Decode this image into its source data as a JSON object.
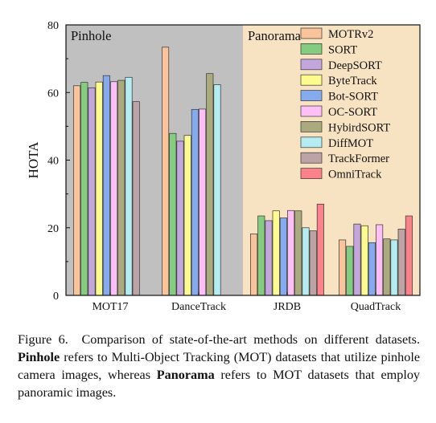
{
  "chart_data": {
    "type": "bar",
    "ylabel": "HOTA",
    "ylim": [
      0,
      80
    ],
    "yticks": [
      0,
      20,
      40,
      60,
      80
    ],
    "grid": false,
    "legend_position": "top-right",
    "categories": [
      "MOT17",
      "DanceTrack",
      "JRDB",
      "QuadTrack"
    ],
    "regions": [
      {
        "label": "Pinhole",
        "categories": [
          "MOT17",
          "DanceTrack"
        ],
        "color": "#c0c0c0"
      },
      {
        "label": "Panorama",
        "categories": [
          "JRDB",
          "QuadTrack"
        ],
        "color": "#f7e3c2"
      }
    ],
    "series": [
      {
        "name": "MOTRv2",
        "color": "#f9c49b",
        "values": [
          62,
          73.4,
          18.2,
          16.4
        ]
      },
      {
        "name": "SORT",
        "color": "#83cc80",
        "values": [
          63,
          47.9,
          23.5,
          14.5
        ]
      },
      {
        "name": "DeepSORT",
        "color": "#c3a6dc",
        "values": [
          61.4,
          45.6,
          22.1,
          21.1
        ]
      },
      {
        "name": "ByteTrack",
        "color": "#fdfb8d",
        "values": [
          63.1,
          47.3,
          25.0,
          20.6
        ]
      },
      {
        "name": "Bot-SORT",
        "color": "#86aaee",
        "values": [
          65,
          55.0,
          22.9,
          15.6
        ]
      },
      {
        "name": "OC-SORT",
        "color": "#fcc0f7",
        "values": [
          63.2,
          55.1,
          25.1,
          20.9
        ]
      },
      {
        "name": "HybirdSORT",
        "color": "#aaaa7e",
        "values": [
          63.6,
          65.6,
          25.0,
          16.7
        ]
      },
      {
        "name": "DiffMOT",
        "color": "#b5ecf1",
        "values": [
          64.5,
          62.3,
          20.0,
          16.4
        ]
      },
      {
        "name": "TrackFormer",
        "color": "#bda3a5",
        "values": [
          57.3,
          null,
          19.1,
          19.6
        ]
      },
      {
        "name": "OmniTrack",
        "color": "#fa828b",
        "values": [
          null,
          null,
          27.0,
          23.5
        ]
      }
    ]
  },
  "caption": {
    "figure_label": "Figure 6.",
    "text_1": "Comparison of state-of-the-art methods on different datasets.",
    "term_1": "Pinhole",
    "text_2": "refers to Multi-Object Tracking (MOT) datasets that utilize pinhole camera images, whereas",
    "term_2": "Panorama",
    "text_3": "refers to MOT datasets that employ panoramic images."
  }
}
